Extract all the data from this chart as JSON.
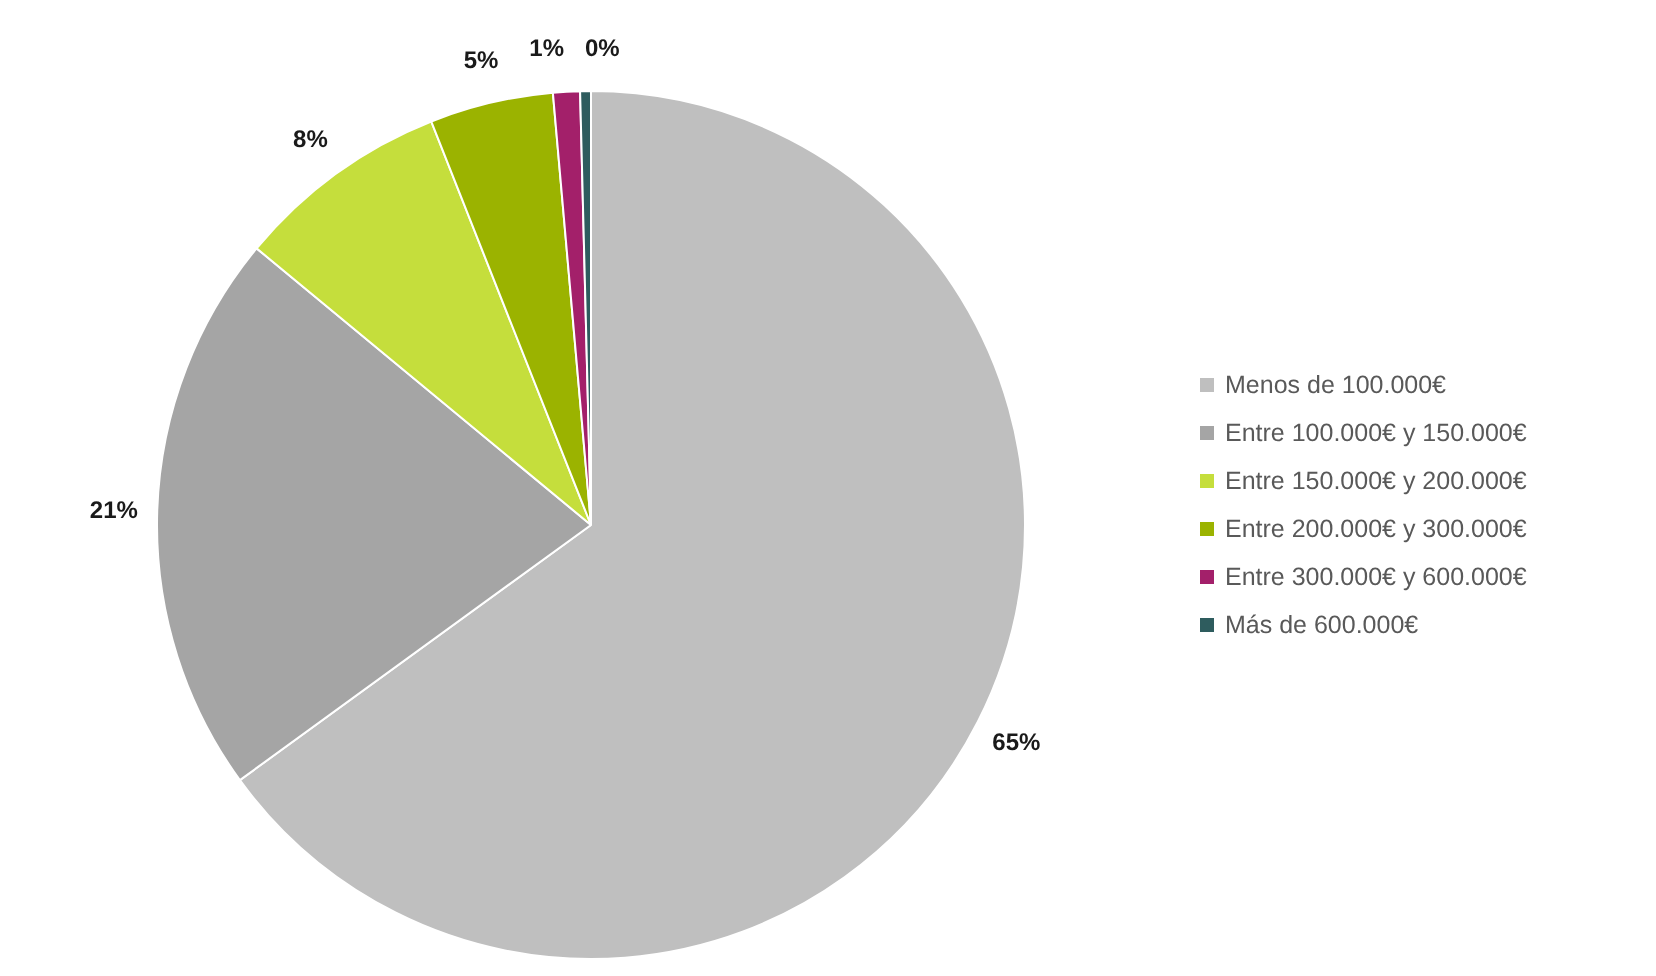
{
  "chart_data": {
    "type": "pie",
    "categories": [
      "Menos de 100.000€",
      "Entre 100.000€ y 150.000€",
      "Entre 150.000€ y 200.000€",
      "Entre 200.000€ y 300.000€",
      "Entre 300.000€ y 600.000€",
      "Más de 600.000€"
    ],
    "values": [
      65,
      21,
      8,
      4.6,
      1.0,
      0.4
    ],
    "value_labels": [
      "65%",
      "21%",
      "8%",
      "5%",
      "1%",
      "0%"
    ],
    "colors": [
      "#bfbfbf",
      "#a5a5a5",
      "#c5de3c",
      "#9bb300",
      "#a3206a",
      "#2e5c5e"
    ],
    "legend": "right"
  }
}
